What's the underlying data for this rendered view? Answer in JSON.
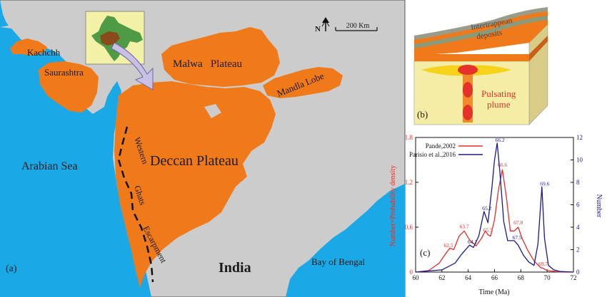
{
  "map": {
    "panel_label": "(a)",
    "labels": {
      "kachchh": "Kachchh",
      "saurashtra": "Saurashtra",
      "malwa": "Malwa   Plateau",
      "mandla": "Mandla Lobe",
      "deccan": "Deccan Plateau",
      "arabian_sea": "Arabian Sea",
      "western": "Western",
      "ghats": "Ghats",
      "escarpment": "Escarpment",
      "india": "India",
      "bay": "Bay of Bengal"
    },
    "north": "N",
    "scale": "200 Km",
    "colors": {
      "sea": "#1aa9e6",
      "land": "#cccccc",
      "trap": "#f07a1a",
      "inset_bg": "#f3f1a8"
    }
  },
  "block": {
    "panel_label": "(b)",
    "intertrappean_line1": "Intertrappean",
    "intertrappean_line2": "deposits",
    "plume_line1": "Pulsating",
    "plume_line2": "plume",
    "colors": {
      "box": "#f5eda6",
      "plume": "#e6302a",
      "layer_orange": "#f07a1a",
      "layer_green": "#8a9a7a"
    }
  },
  "chart": {
    "panel_label": "(c)",
    "legend": [
      "Pande,2002",
      "Parisio et al.,2016"
    ],
    "xlabel": "Time (Ma)",
    "ylabel_left": "Number×Probability density",
    "ylabel_right": "Number",
    "xticks": [
      "60",
      "62",
      "64",
      "66",
      "68",
      "70",
      "72"
    ],
    "yticks_left": [
      "0",
      "0.6",
      "1.2",
      "1.8"
    ],
    "yticks_right": [
      "0",
      "2",
      "4",
      "6",
      "8",
      "10",
      "12"
    ],
    "peak_labels_red": [
      "62.5",
      "63.7",
      "65.5",
      "66.6",
      "67.8",
      "69.7"
    ],
    "peak_labels_blue": [
      "64.1",
      "65.2",
      "66.2",
      "67.5",
      "69.6"
    ]
  },
  "chart_data": {
    "type": "line",
    "xlabel": "Time (Ma)",
    "ylabel": "Number×Probability density",
    "y2label": "Number",
    "xlim": [
      60,
      72
    ],
    "ylim": [
      0,
      1.8
    ],
    "y2lim": [
      0,
      12
    ],
    "series": [
      {
        "name": "Pande,2002",
        "color": "#e0302a",
        "axis": "left",
        "x": [
          60,
          61,
          61.8,
          62.3,
          62.6,
          62.9,
          63.3,
          63.7,
          64.1,
          64.6,
          65.0,
          65.3,
          65.5,
          65.7,
          66.0,
          66.3,
          66.6,
          66.9,
          67.2,
          67.5,
          67.8,
          68.1,
          68.5,
          69.0,
          69.5,
          69.7,
          70.0,
          70.5,
          71,
          72
        ],
        "y": [
          0,
          0.02,
          0.12,
          0.25,
          0.32,
          0.3,
          0.48,
          0.55,
          0.43,
          0.35,
          0.45,
          0.55,
          0.5,
          0.48,
          0.7,
          1.1,
          1.37,
          1.0,
          0.55,
          0.55,
          0.6,
          0.45,
          0.3,
          0.15,
          0.06,
          0.05,
          0.02,
          0.01,
          0,
          0
        ]
      },
      {
        "name": "Parisio et al.,2016",
        "color": "#1a1a8c",
        "axis": "right",
        "x": [
          60,
          62,
          63,
          63.5,
          64.1,
          64.4,
          64.8,
          65.2,
          65.5,
          65.8,
          66.0,
          66.2,
          66.4,
          66.7,
          67.0,
          67.5,
          67.8,
          68.2,
          68.6,
          69.0,
          69.3,
          69.6,
          69.8,
          70.1,
          70.5,
          71,
          72
        ],
        "y": [
          0,
          0.2,
          0.8,
          1.6,
          2.4,
          2.2,
          3.2,
          5.4,
          4.4,
          7.5,
          10.0,
          11.5,
          9.0,
          4.5,
          2.8,
          2.8,
          2.4,
          1.5,
          0.9,
          0.6,
          2.5,
          7.6,
          3.0,
          0.6,
          0.2,
          0.05,
          0
        ]
      }
    ]
  }
}
